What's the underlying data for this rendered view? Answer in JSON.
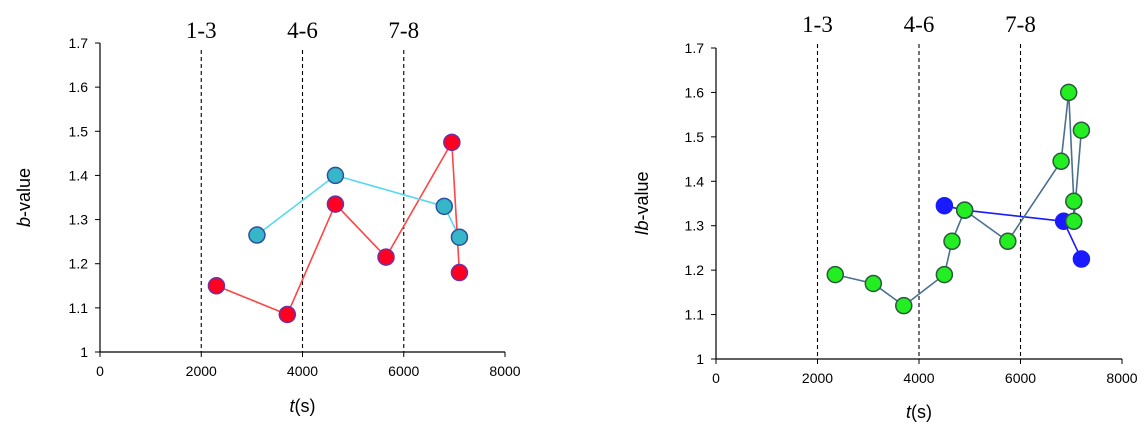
{
  "chart_data": [
    {
      "type": "scatter",
      "xlim": [
        0,
        8000
      ],
      "ylim": [
        1,
        1.7
      ],
      "xticks": [
        "0",
        "2000",
        "4000",
        "6000",
        "8000"
      ],
      "yticks": [
        "1",
        "1.1",
        "1.2",
        "1.3",
        "1.4",
        "1.5",
        "1.6",
        "1.7"
      ],
      "xlabel_italic": "t",
      "xlabel_rest": "(s)",
      "ylabel_italic": "b",
      "ylabel_rest": "-value",
      "ylabel_prefix": "",
      "regions": [
        {
          "label": "1-3",
          "x": 2000
        },
        {
          "label": "4-6",
          "x": 4000
        },
        {
          "label": "7-8",
          "x": 6000
        }
      ],
      "series": [
        {
          "color": "#ff0022",
          "line_color": "#ff4545",
          "edge_color": "#7030a0",
          "points": [
            [
              2300,
              1.15
            ],
            [
              3700,
              1.085
            ],
            [
              4650,
              1.335
            ],
            [
              5650,
              1.215
            ],
            [
              6950,
              1.475
            ],
            [
              7100,
              1.18
            ]
          ]
        },
        {
          "color": "#35b6c9",
          "line_color": "#55d8f4",
          "edge_color": "#2f4f9f",
          "points": [
            [
              3100,
              1.265
            ],
            [
              4650,
              1.4
            ],
            [
              6800,
              1.33
            ],
            [
              7100,
              1.26
            ]
          ]
        }
      ]
    },
    {
      "type": "scatter",
      "xlim": [
        0,
        8000
      ],
      "ylim": [
        1,
        1.7
      ],
      "xticks": [
        "0",
        "2000",
        "4000",
        "6000",
        "8000"
      ],
      "yticks": [
        "1",
        "1.1",
        "1.2",
        "1.3",
        "1.4",
        "1.5",
        "1.6",
        "1.7"
      ],
      "xlabel_italic": "t",
      "xlabel_rest": "(s)",
      "ylabel_italic": "b",
      "ylabel_rest": "-value",
      "ylabel_prefix": "I",
      "regions": [
        {
          "label": "1-3",
          "x": 2000
        },
        {
          "label": "4-6",
          "x": 4000
        },
        {
          "label": "7-8",
          "x": 6000
        }
      ],
      "series": [
        {
          "color": "#1a1aff",
          "line_color": "#1a1aff",
          "edge_color": "#1a1aff",
          "points": [
            [
              4500,
              1.345
            ],
            [
              4900,
              1.335
            ],
            [
              6850,
              1.31
            ],
            [
              7200,
              1.225
            ]
          ]
        },
        {
          "color": "#22ee22",
          "line_color": "#4a7090",
          "edge_color": "#2a5a3a",
          "points": [
            [
              2350,
              1.19
            ],
            [
              3100,
              1.17
            ],
            [
              3700,
              1.12
            ],
            [
              4500,
              1.19
            ],
            [
              4650,
              1.265
            ],
            [
              4900,
              1.335
            ],
            [
              5750,
              1.265
            ],
            [
              6800,
              1.445
            ],
            [
              6950,
              1.6
            ],
            [
              7050,
              1.355
            ],
            [
              7050,
              1.31
            ],
            [
              7200,
              1.515
            ]
          ]
        }
      ]
    }
  ]
}
